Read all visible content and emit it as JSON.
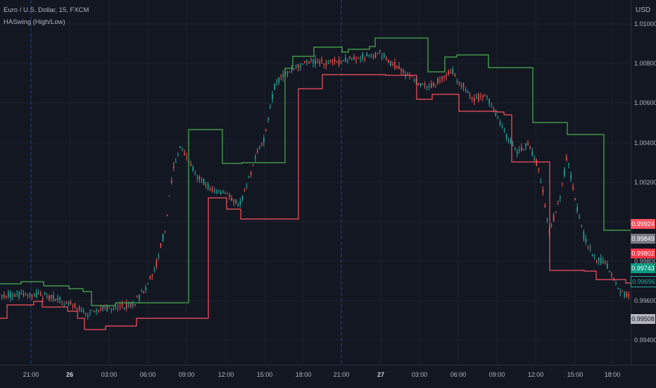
{
  "header": {
    "symbol": "Euro / U.S. Dollar, 15, FXCM",
    "indicator": "HASwing (High/Low)"
  },
  "price_axis": {
    "currency": "USD",
    "labels": [
      "1.01000",
      "1.00800",
      "1.00600",
      "1.00400",
      "1.00200",
      "0.99800",
      "0.99600",
      "0.99400"
    ]
  },
  "time_axis": {
    "labels": [
      "21:00",
      "26",
      "03:00",
      "06:00",
      "09:00",
      "12:00",
      "15:00",
      "18:00",
      "21:00",
      "27",
      "03:00",
      "06:00",
      "09:00",
      "12:00",
      "15:00",
      "18:00"
    ]
  },
  "price_tags": [
    {
      "value": "0.99924",
      "bg": "#f7525f",
      "fg": "#ffffff"
    },
    {
      "value": "0.99849",
      "bg": "#787b86",
      "fg": "#ffffff"
    },
    {
      "value": "0.99802",
      "bg": "#f23645",
      "fg": "#ffffff"
    },
    {
      "value": "0.99743",
      "bg": "#089981",
      "fg": "#ffffff"
    },
    {
      "value": "0.99696",
      "bg": "#131722",
      "fg": "#26a69a"
    },
    {
      "value": "0.99508",
      "bg": "#b2b5be",
      "fg": "#131722"
    }
  ],
  "colors": {
    "background": "#131722",
    "grid": "#1e222d",
    "swing_high": "#4caf50",
    "swing_low": "#f7525f",
    "bull": "#26a69a",
    "bear": "#ef5350"
  }
}
